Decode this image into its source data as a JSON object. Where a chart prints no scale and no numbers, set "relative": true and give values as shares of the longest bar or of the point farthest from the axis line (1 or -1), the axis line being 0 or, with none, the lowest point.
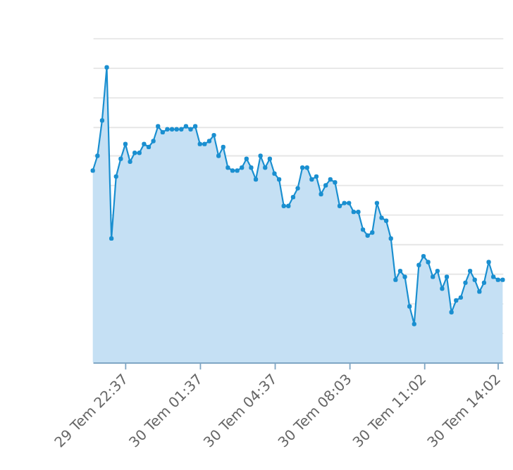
{
  "chart_data": {
    "type": "area",
    "relative": true,
    "grid": "y",
    "marker": "circle",
    "line_style": "solid",
    "tick_labels": "x",
    "categories": [
      null,
      null,
      null,
      null,
      null,
      null,
      null,
      "29 Tem 22:37",
      null,
      null,
      null,
      null,
      null,
      null,
      null,
      null,
      null,
      null,
      null,
      null,
      null,
      null,
      null,
      "30 Tem 01:37",
      null,
      null,
      null,
      null,
      null,
      null,
      null,
      null,
      null,
      null,
      null,
      null,
      null,
      null,
      null,
      "30 Tem 04:37",
      null,
      null,
      null,
      null,
      null,
      null,
      null,
      null,
      null,
      null,
      null,
      null,
      null,
      null,
      null,
      "30 Tem 08:03",
      null,
      null,
      null,
      null,
      null,
      null,
      null,
      null,
      null,
      null,
      null,
      null,
      null,
      null,
      null,
      "30 Tem 11:02",
      null,
      null,
      null,
      null,
      null,
      null,
      null,
      null,
      null,
      null,
      null,
      null,
      null,
      null,
      null,
      "30 Tem 14:02",
      null
    ],
    "series": [
      {
        "color": "#1a8fd0",
        "values": [
          0.65,
          0.7,
          0.82,
          1.0,
          0.42,
          0.63,
          0.69,
          0.74,
          0.68,
          0.71,
          0.71,
          0.74,
          0.73,
          0.75,
          0.8,
          0.78,
          0.79,
          0.79,
          0.79,
          0.79,
          0.8,
          0.79,
          0.8,
          0.74,
          0.74,
          0.75,
          0.77,
          0.7,
          0.73,
          0.66,
          0.65,
          0.65,
          0.66,
          0.69,
          0.66,
          0.62,
          0.7,
          0.66,
          0.69,
          0.64,
          0.62,
          0.53,
          0.53,
          0.56,
          0.59,
          0.66,
          0.66,
          0.62,
          0.63,
          0.57,
          0.6,
          0.62,
          0.61,
          0.53,
          0.54,
          0.54,
          0.51,
          0.51,
          0.45,
          0.43,
          0.44,
          0.54,
          0.49,
          0.48,
          0.42,
          0.28,
          0.31,
          0.29,
          0.19,
          0.13,
          0.33,
          0.36,
          0.34,
          0.29,
          0.31,
          0.25,
          0.29,
          0.17,
          0.21,
          0.22,
          0.27,
          0.31,
          0.28,
          0.24,
          0.27,
          0.34,
          0.29,
          0.28,
          0.28
        ]
      }
    ]
  }
}
